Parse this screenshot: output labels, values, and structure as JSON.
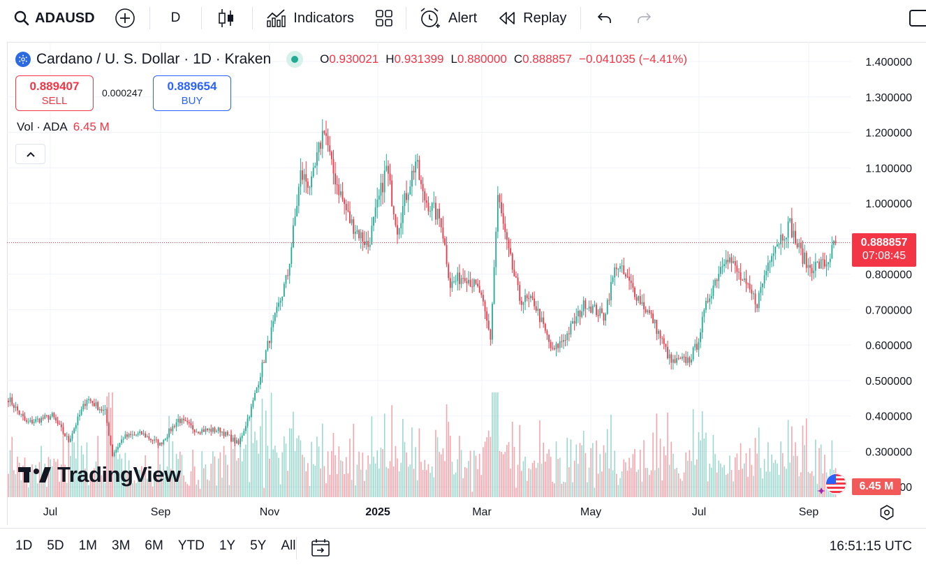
{
  "toolbar": {
    "symbol": "ADAUSD",
    "interval": "D",
    "indicators_label": "Indicators",
    "alert_label": "Alert",
    "replay_label": "Replay"
  },
  "legend": {
    "title": "Cardano / U. S. Dollar · 1D · Kraken",
    "open_label": "O",
    "open": "0.930021",
    "high_label": "H",
    "high": "0.931399",
    "low_label": "L",
    "low": "0.880000",
    "close_label": "C",
    "close": "0.888857",
    "change": "−0.041035 (−4.41%)"
  },
  "trade": {
    "sell_price": "0.889407",
    "sell_label": "SELL",
    "spread": "0.000247",
    "buy_price": "0.889654",
    "buy_label": "BUY"
  },
  "volume_legend": {
    "label": "Vol · ADA",
    "value": "6.45 M"
  },
  "watermark": "TradingView",
  "price_tag": {
    "price": "0.888857",
    "countdown": "07:08:45"
  },
  "volume_tag": "6.45 M",
  "bottom": {
    "ranges": [
      "1D",
      "5D",
      "1M",
      "3M",
      "6M",
      "YTD",
      "1Y",
      "5Y",
      "All"
    ],
    "clock": "16:51:15 UTC"
  },
  "colors": {
    "up": "#22ab94",
    "down": "#f23645",
    "accent": "#2962ff",
    "grid": "#f0f3fa"
  },
  "chart_data": {
    "type": "candlestick",
    "y_axis_labels": [
      "1.400000",
      "1.300000",
      "1.200000",
      "1.100000",
      "1.000000",
      "0.900000",
      "0.800000",
      "0.700000",
      "0.600000",
      "0.500000",
      "0.400000",
      "0.300000",
      "0.200000"
    ],
    "ylim": [
      0.2,
      1.4
    ],
    "x_axis_labels": [
      "Jul",
      "Sep",
      "Nov",
      "2025",
      "Mar",
      "May",
      "Jul",
      "Sep"
    ],
    "last_price": 0.888857,
    "anchors": [
      [
        0,
        0.45
      ],
      [
        10,
        0.38
      ],
      [
        24,
        0.4
      ],
      [
        33,
        0.33
      ],
      [
        43,
        0.45
      ],
      [
        53,
        0.41
      ],
      [
        57,
        0.29
      ],
      [
        63,
        0.34
      ],
      [
        73,
        0.35
      ],
      [
        83,
        0.32
      ],
      [
        93,
        0.39
      ],
      [
        103,
        0.36
      ],
      [
        116,
        0.36
      ],
      [
        126,
        0.32
      ],
      [
        133,
        0.42
      ],
      [
        143,
        0.62
      ],
      [
        153,
        0.8
      ],
      [
        160,
        1.08
      ],
      [
        166,
        1.05
      ],
      [
        173,
        1.22
      ],
      [
        177,
        1.1
      ],
      [
        187,
        0.95
      ],
      [
        197,
        0.88
      ],
      [
        207,
        1.1
      ],
      [
        213,
        0.93
      ],
      [
        223,
        1.12
      ],
      [
        227,
        1.02
      ],
      [
        237,
        0.95
      ],
      [
        242,
        0.77
      ],
      [
        250,
        0.8
      ],
      [
        258,
        0.75
      ],
      [
        264,
        0.62
      ],
      [
        268,
        1.02
      ],
      [
        273,
        0.88
      ],
      [
        280,
        0.73
      ],
      [
        288,
        0.72
      ],
      [
        298,
        0.58
      ],
      [
        306,
        0.63
      ],
      [
        316,
        0.72
      ],
      [
        326,
        0.68
      ],
      [
        333,
        0.83
      ],
      [
        343,
        0.75
      ],
      [
        353,
        0.67
      ],
      [
        363,
        0.55
      ],
      [
        373,
        0.56
      ],
      [
        377,
        0.6
      ],
      [
        383,
        0.73
      ],
      [
        393,
        0.86
      ],
      [
        403,
        0.77
      ],
      [
        410,
        0.72
      ],
      [
        418,
        0.87
      ],
      [
        428,
        0.94
      ],
      [
        432,
        0.88
      ],
      [
        438,
        0.82
      ],
      [
        448,
        0.83
      ],
      [
        453,
        0.89
      ]
    ]
  }
}
